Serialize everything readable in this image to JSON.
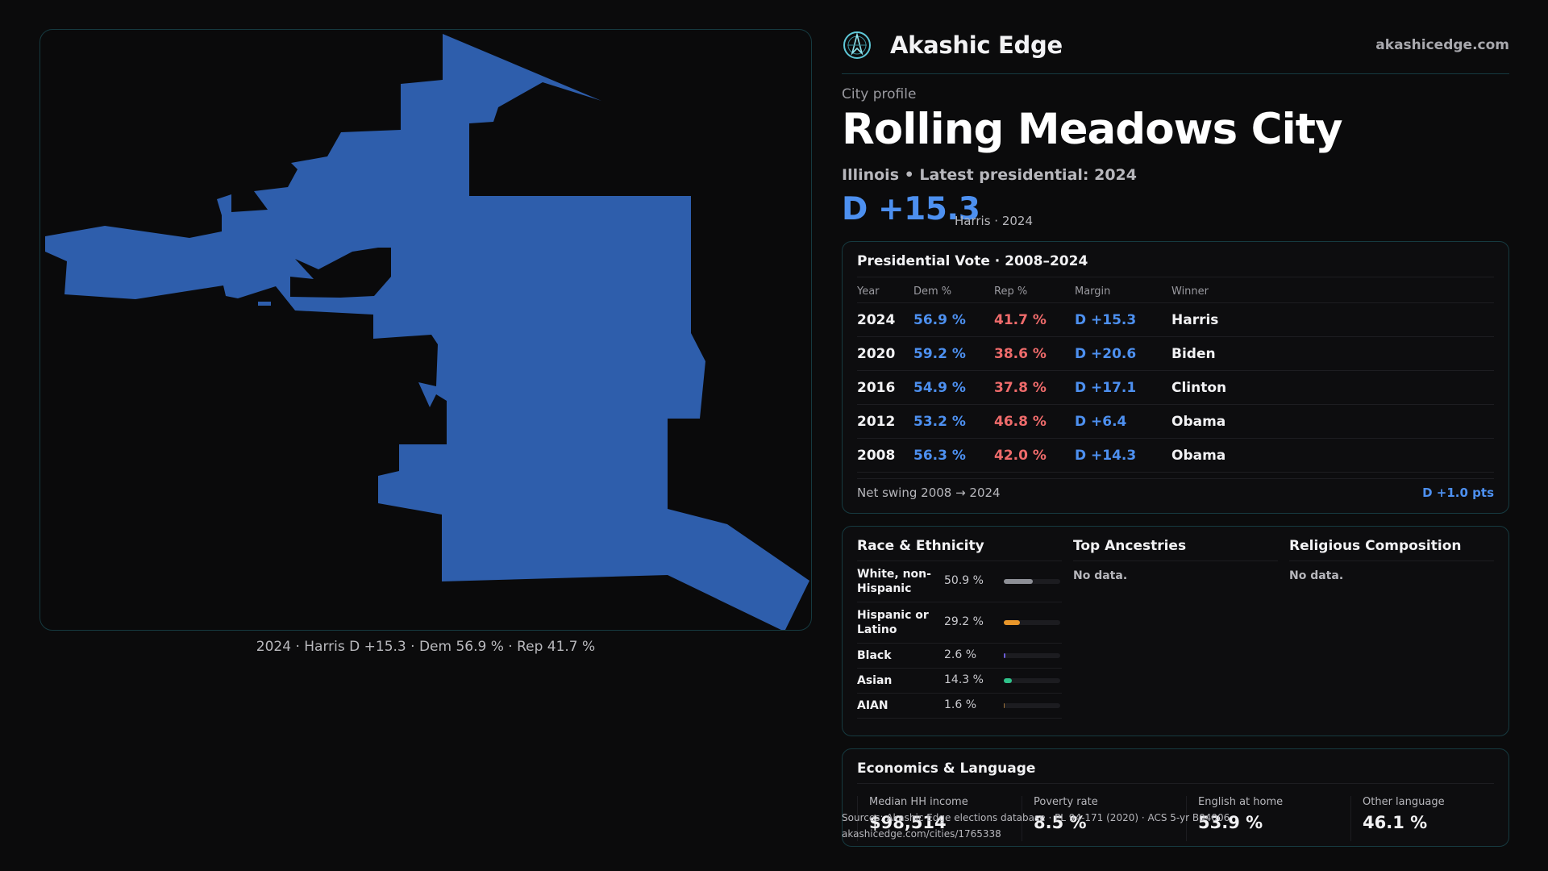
{
  "brand": {
    "name": "Akashic Edge",
    "url": "akashicedge.com",
    "logo_icon": "compass-logo-icon"
  },
  "profile": {
    "kicker": "City profile",
    "city": "Rolling Meadows City",
    "subline": "Illinois • Latest presidential: 2024",
    "headline_margin": "D +15.3",
    "headline_note": "Harris · 2024"
  },
  "map": {
    "caption": "2024 · Harris D +15.3 · Dem 56.9 % · Rep 41.7 %",
    "fill_color": "#2e5eac"
  },
  "presidential": {
    "title": "Presidential Vote · 2008–2024",
    "headers": {
      "year": "Year",
      "dem": "Dem %",
      "rep": "Rep %",
      "margin": "Margin",
      "winner": "Winner"
    },
    "rows": [
      {
        "year": "2024",
        "dem": "56.9 %",
        "rep": "41.7 %",
        "margin": "D +15.3",
        "winner": "Harris"
      },
      {
        "year": "2020",
        "dem": "59.2 %",
        "rep": "38.6 %",
        "margin": "D +20.6",
        "winner": "Biden"
      },
      {
        "year": "2016",
        "dem": "54.9 %",
        "rep": "37.8 %",
        "margin": "D +17.1",
        "winner": "Clinton"
      },
      {
        "year": "2012",
        "dem": "53.2 %",
        "rep": "46.8 %",
        "margin": "D +6.4",
        "winner": "Obama"
      },
      {
        "year": "2008",
        "dem": "56.3 %",
        "rep": "42.0 %",
        "margin": "D +14.3",
        "winner": "Obama"
      }
    ],
    "swing_label": "Net swing 2008 → 2024",
    "swing_value": "D +1.0 pts"
  },
  "race": {
    "title": "Race & Ethnicity",
    "rows": [
      {
        "label": "White, non-Hispanic",
        "pct": "50.9 %",
        "share": 0.509,
        "color": "#8d8f96"
      },
      {
        "label": "Hispanic or Latino",
        "pct": "29.2 %",
        "share": 0.292,
        "color": "#e8962a"
      },
      {
        "label": "Black",
        "pct": "2.6 %",
        "share": 0.026,
        "color": "#6a5cd6"
      },
      {
        "label": "Asian",
        "pct": "14.3 %",
        "share": 0.143,
        "color": "#2fc28a"
      },
      {
        "label": "AIAN",
        "pct": "1.6 %",
        "share": 0.016,
        "color": "#a0743a"
      }
    ]
  },
  "ancestries": {
    "title": "Top Ancestries",
    "empty": "No data."
  },
  "religion": {
    "title": "Religious Composition",
    "empty": "No data."
  },
  "economics": {
    "title": "Economics & Language",
    "stats": [
      {
        "label": "Median HH income",
        "value": "$98,514"
      },
      {
        "label": "Poverty rate",
        "value": "8.5 %"
      },
      {
        "label": "English at home",
        "value": "53.9 %"
      },
      {
        "label": "Other language",
        "value": "46.1 %"
      }
    ]
  },
  "source": {
    "line1": "Sources: Akashic Edge elections database · PL 94-171 (2020) · ACS 5-yr B04006",
    "line2": "akashicedge.com/cities/1765338"
  }
}
